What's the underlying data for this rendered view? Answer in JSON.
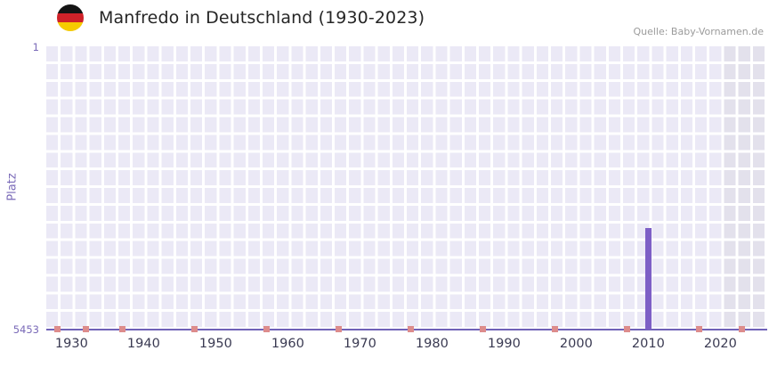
{
  "header": {
    "title": "Manfredo in Deutschland (1930-2023)",
    "flag_icon": "german-flag-icon",
    "source": "Quelle: Baby-Vornamen.de"
  },
  "chart_data": {
    "type": "bar",
    "title": "Manfredo in Deutschland (1930-2023)",
    "xlabel": "",
    "ylabel": "Platz",
    "y_axis": {
      "min": 1,
      "max": 5453,
      "inverted": true,
      "label_top": "1",
      "label_bottom": "5453"
    },
    "x_axis": {
      "range": [
        1927,
        2027
      ],
      "ticks": [
        1930,
        1940,
        1950,
        1960,
        1970,
        1980,
        1990,
        2000,
        2010,
        2020
      ]
    },
    "bars": [
      {
        "year": 2010,
        "rank": 3500
      }
    ],
    "unranked_marker_years": [
      1928,
      1932,
      1937,
      1947,
      1957,
      1967,
      1977,
      1987,
      1997,
      2007,
      2017,
      2023
    ],
    "shaded_region": {
      "from": 2021,
      "to": 2027
    },
    "legend": false,
    "grid": true,
    "colors": {
      "plot_bg": "#ebe9f6",
      "shade": "#e3e1ec",
      "grid": "#ffffff",
      "bar": "#7d5fc6",
      "marker": "#dd8c8c",
      "axis_line": "#7062b8",
      "y_tick": "#7a6ab8",
      "x_tick": "#3a3a52"
    }
  }
}
